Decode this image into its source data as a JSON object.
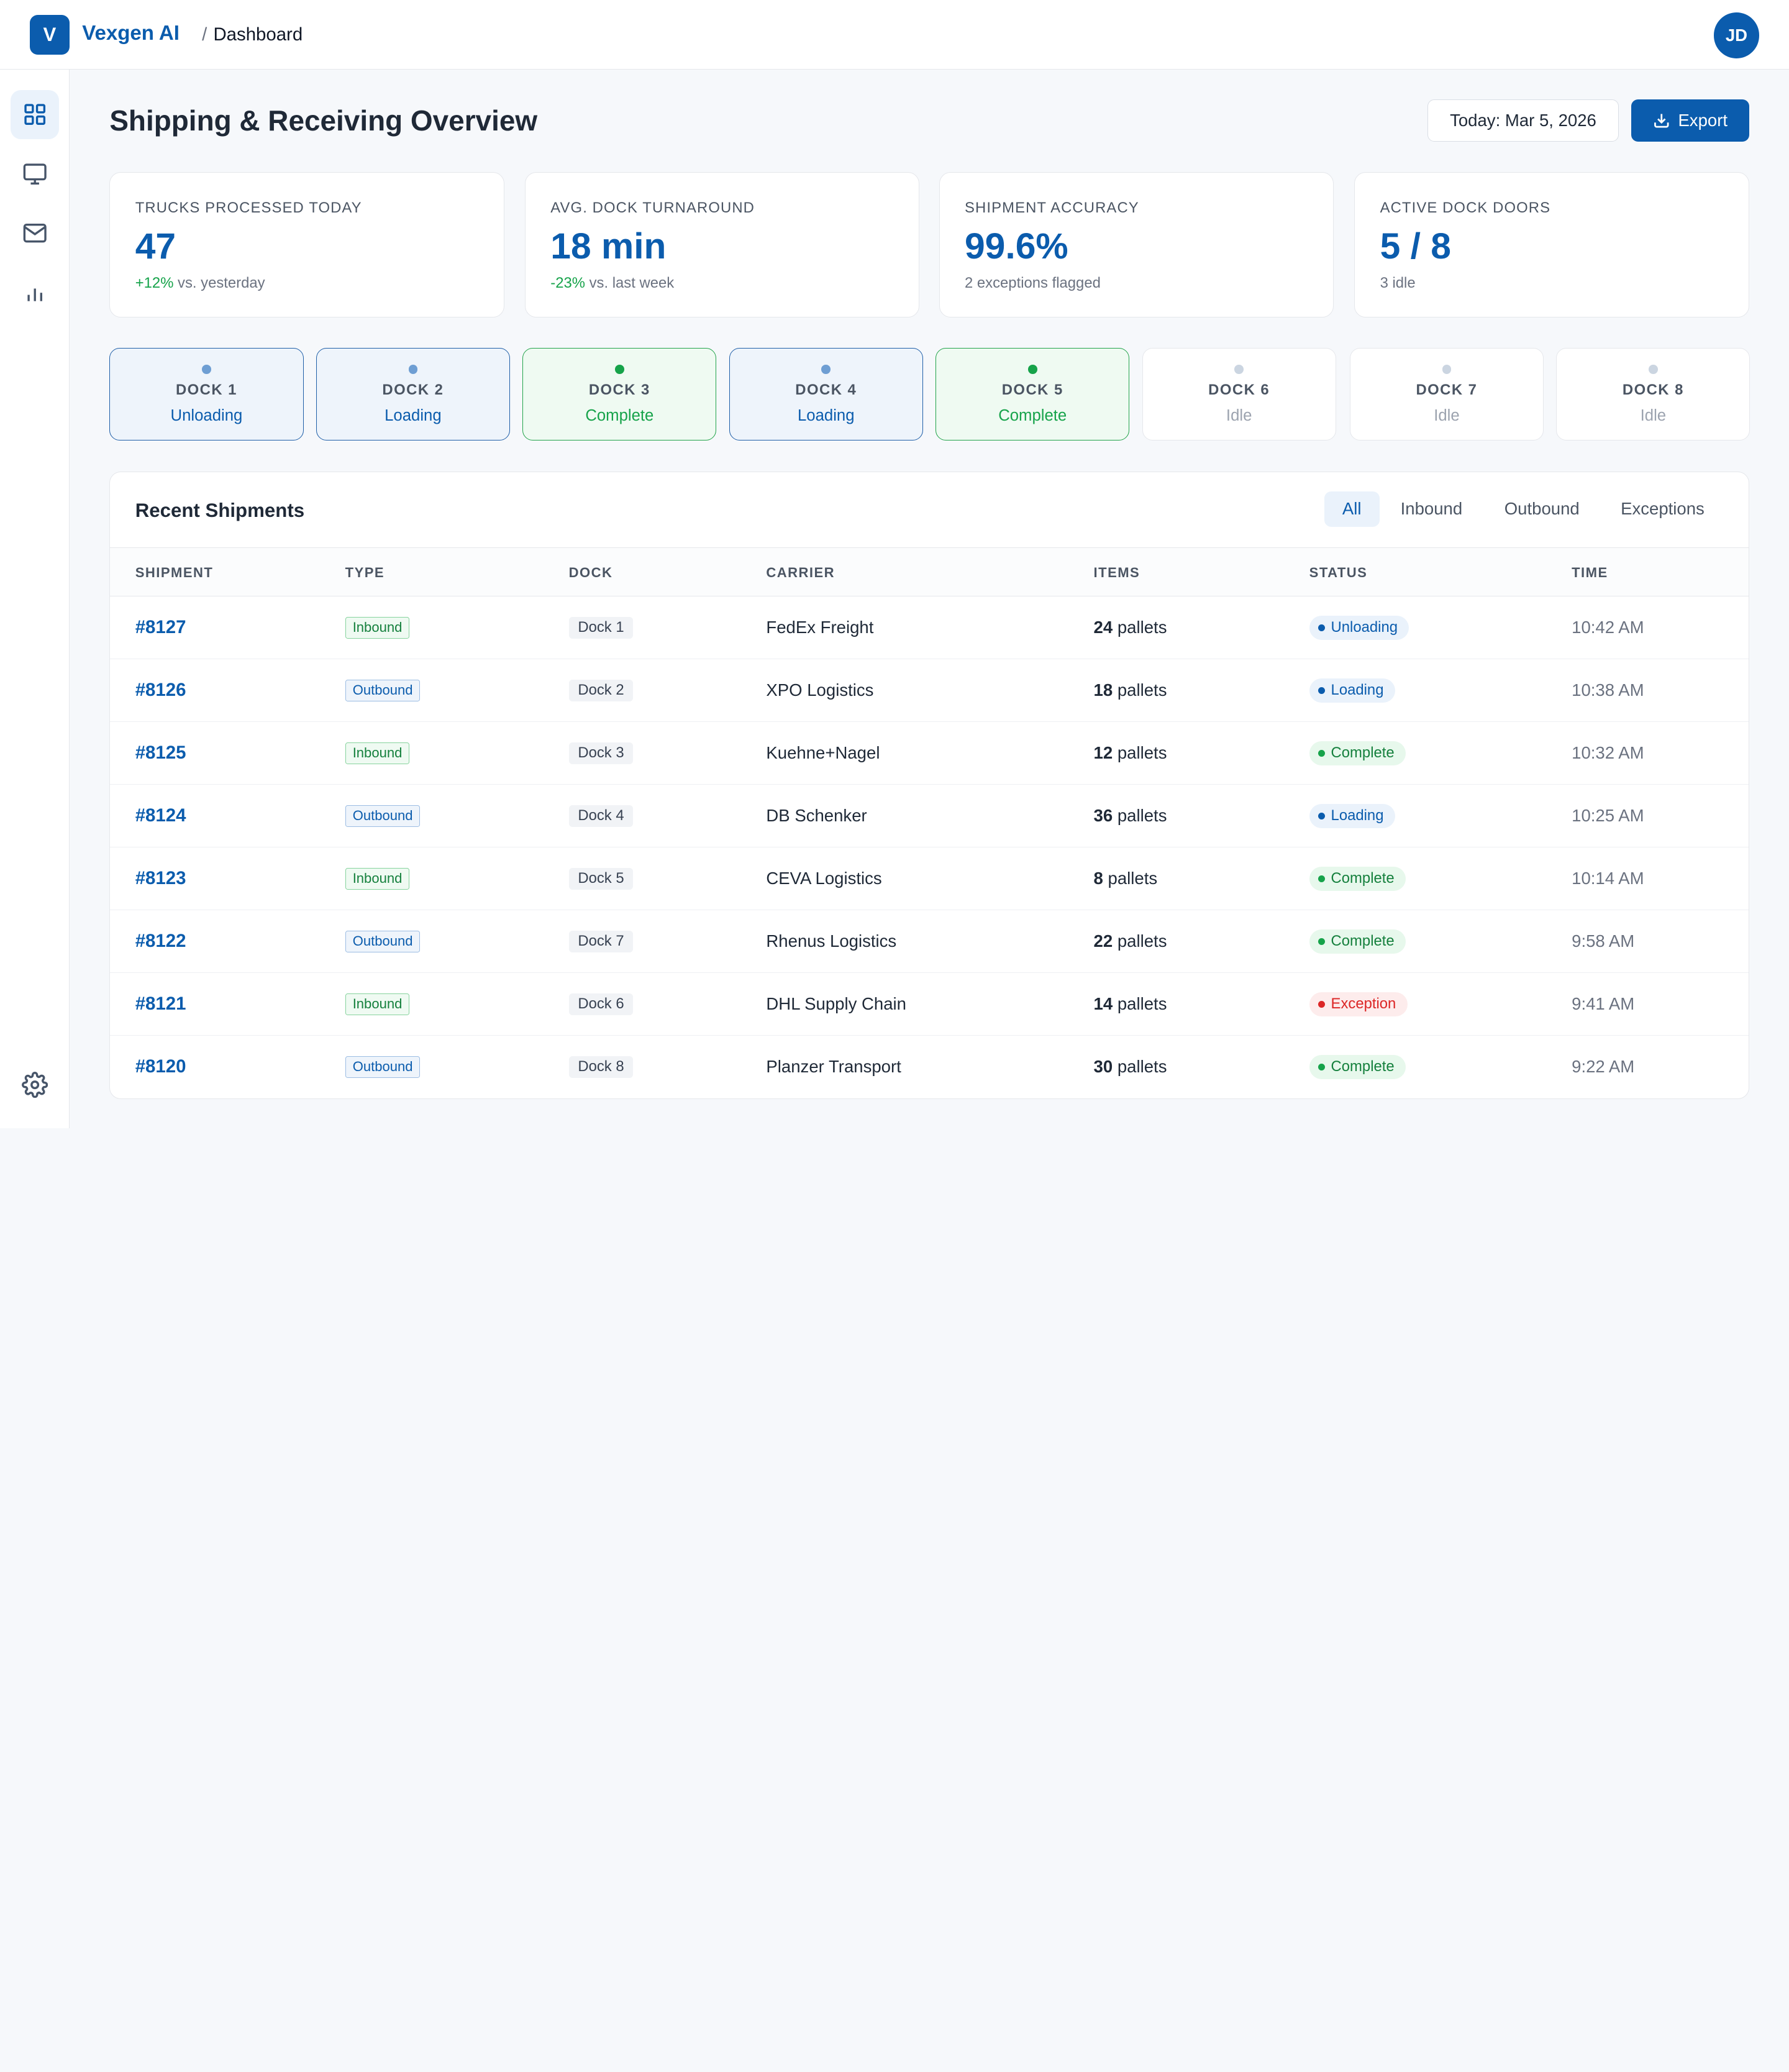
{
  "app": {
    "logo_letter": "V",
    "name": "Vexgen AI",
    "breadcrumb_sep": "/",
    "breadcrumb": "Dashboard",
    "user_initials": "JD"
  },
  "sidebar": {
    "items": [
      {
        "name": "dashboard",
        "icon": "grid-icon",
        "active": true
      },
      {
        "name": "monitor",
        "icon": "monitor-icon",
        "active": false
      },
      {
        "name": "messages",
        "icon": "mail-icon",
        "active": false
      },
      {
        "name": "reports",
        "icon": "bar-chart-icon",
        "active": false
      }
    ],
    "settings_icon": "gear-icon"
  },
  "header": {
    "title": "Shipping & Receiving Overview",
    "date_label": "Today: Mar 5, 2026",
    "export_label": "Export"
  },
  "kpis": [
    {
      "label": "TRUCKS PROCESSED TODAY",
      "value": "47",
      "delta": "+12%",
      "sub": " vs. yesterday"
    },
    {
      "label": "AVG. DOCK TURNAROUND",
      "value": "18 min",
      "delta": "-23%",
      "sub": " vs. last week"
    },
    {
      "label": "SHIPMENT ACCURACY",
      "value": "99.6%",
      "delta": "",
      "sub": "2 exceptions flagged"
    },
    {
      "label": "ACTIVE DOCK DOORS",
      "value": "5 / 8",
      "delta": "",
      "sub": "3 idle"
    }
  ],
  "docks": [
    {
      "name": "DOCK 1",
      "status": "Unloading",
      "tone": "blue"
    },
    {
      "name": "DOCK 2",
      "status": "Loading",
      "tone": "blue"
    },
    {
      "name": "DOCK 3",
      "status": "Complete",
      "tone": "green"
    },
    {
      "name": "DOCK 4",
      "status": "Loading",
      "tone": "blue"
    },
    {
      "name": "DOCK 5",
      "status": "Complete",
      "tone": "green"
    },
    {
      "name": "DOCK 6",
      "status": "Idle",
      "tone": "idle"
    },
    {
      "name": "DOCK 7",
      "status": "Idle",
      "tone": "idle"
    },
    {
      "name": "DOCK 8",
      "status": "Idle",
      "tone": "idle"
    }
  ],
  "shipments": {
    "title": "Recent Shipments",
    "filters": [
      {
        "label": "All",
        "active": true
      },
      {
        "label": "Inbound",
        "active": false
      },
      {
        "label": "Outbound",
        "active": false
      },
      {
        "label": "Exceptions",
        "active": false
      }
    ],
    "columns": [
      "SHIPMENT",
      "TYPE",
      "DOCK",
      "CARRIER",
      "ITEMS",
      "STATUS",
      "TIME"
    ],
    "rows": [
      {
        "id": "#8127",
        "type": "Inbound",
        "dock": "Dock 1",
        "carrier": "FedEx Freight",
        "qty": "24",
        "unit": " pallets",
        "status": "Unloading",
        "tone": "blue",
        "time": "10:42 AM"
      },
      {
        "id": "#8126",
        "type": "Outbound",
        "dock": "Dock 2",
        "carrier": "XPO Logistics",
        "qty": "18",
        "unit": " pallets",
        "status": "Loading",
        "tone": "blue",
        "time": "10:38 AM"
      },
      {
        "id": "#8125",
        "type": "Inbound",
        "dock": "Dock 3",
        "carrier": "Kuehne+Nagel",
        "qty": "12",
        "unit": " pallets",
        "status": "Complete",
        "tone": "green",
        "time": "10:32 AM"
      },
      {
        "id": "#8124",
        "type": "Outbound",
        "dock": "Dock 4",
        "carrier": "DB Schenker",
        "qty": "36",
        "unit": " pallets",
        "status": "Loading",
        "tone": "blue",
        "time": "10:25 AM"
      },
      {
        "id": "#8123",
        "type": "Inbound",
        "dock": "Dock 5",
        "carrier": "CEVA Logistics",
        "qty": "8",
        "unit": " pallets",
        "status": "Complete",
        "tone": "green",
        "time": "10:14 AM"
      },
      {
        "id": "#8122",
        "type": "Outbound",
        "dock": "Dock 7",
        "carrier": "Rhenus Logistics",
        "qty": "22",
        "unit": " pallets",
        "status": "Complete",
        "tone": "green",
        "time": "9:58 AM"
      },
      {
        "id": "#8121",
        "type": "Inbound",
        "dock": "Dock 6",
        "carrier": "DHL Supply Chain",
        "qty": "14",
        "unit": " pallets",
        "status": "Exception",
        "tone": "red",
        "time": "9:41 AM"
      },
      {
        "id": "#8120",
        "type": "Outbound",
        "dock": "Dock 8",
        "carrier": "Planzer Transport",
        "qty": "30",
        "unit": " pallets",
        "status": "Complete",
        "tone": "green",
        "time": "9:22 AM"
      }
    ]
  }
}
